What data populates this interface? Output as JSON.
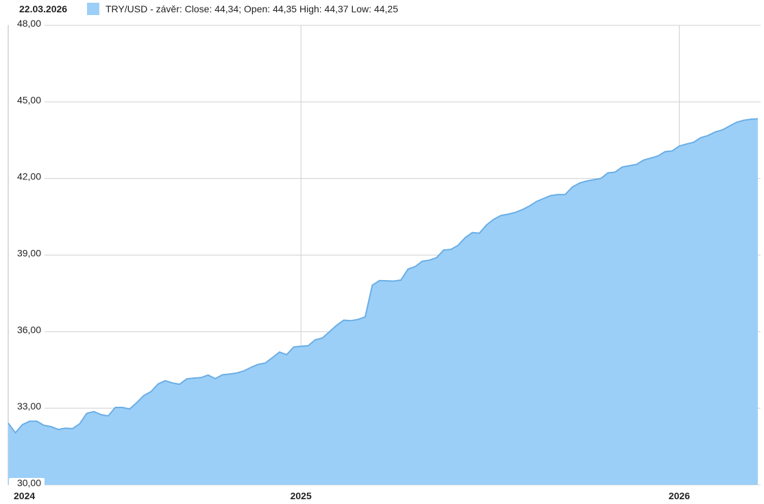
{
  "chart_data": {
    "type": "area",
    "title": "22.03.2026",
    "categories": [
      "2024",
      null,
      null,
      null,
      null,
      null,
      null,
      null,
      null,
      null,
      null,
      null,
      null,
      null,
      null,
      null,
      null,
      null,
      null,
      null,
      null,
      null,
      null,
      null,
      null,
      null,
      null,
      null,
      null,
      null,
      null,
      null,
      null,
      null,
      null,
      null,
      null,
      null,
      null,
      null,
      null,
      "2025",
      null,
      null,
      null,
      null,
      null,
      null,
      null,
      null,
      null,
      null,
      null,
      null,
      null,
      null,
      null,
      null,
      null,
      null,
      null,
      null,
      null,
      null,
      null,
      null,
      null,
      null,
      null,
      null,
      null,
      null,
      null,
      null,
      null,
      null,
      null,
      null,
      null,
      null,
      null,
      null,
      null,
      null,
      null,
      null,
      null,
      null,
      null,
      null,
      null,
      null,
      null,
      null,
      "2026",
      null,
      null,
      null,
      null,
      null,
      null,
      null,
      null,
      null,
      null,
      null
    ],
    "series": [
      {
        "name": "TRY/USD - závěr: Close: 44,34; Open: 44,35 High: 44,37 Low: 44,25",
        "color": "#9ccff7",
        "line_color": "#6aaee6",
        "values": [
          32.42,
          32.04,
          32.36,
          32.49,
          32.49,
          32.33,
          32.28,
          32.17,
          32.22,
          32.2,
          32.39,
          32.8,
          32.87,
          32.75,
          32.7,
          33.03,
          33.03,
          32.97,
          33.22,
          33.5,
          33.65,
          33.95,
          34.08,
          33.99,
          33.94,
          34.15,
          34.18,
          34.2,
          34.3,
          34.16,
          34.31,
          34.34,
          34.38,
          34.46,
          34.6,
          34.72,
          34.77,
          34.98,
          35.2,
          35.1,
          35.4,
          35.43,
          35.45,
          35.68,
          35.75,
          36.0,
          36.25,
          36.45,
          36.43,
          36.48,
          36.58,
          37.82,
          38.0,
          37.99,
          37.98,
          38.02,
          38.45,
          38.55,
          38.76,
          38.8,
          38.9,
          39.2,
          39.22,
          39.38,
          39.68,
          39.88,
          39.86,
          40.18,
          40.4,
          40.55,
          40.6,
          40.67,
          40.78,
          40.92,
          41.1,
          41.22,
          41.33,
          41.37,
          41.37,
          41.66,
          41.82,
          41.9,
          41.95,
          42.0,
          42.22,
          42.25,
          42.45,
          42.5,
          42.55,
          42.72,
          42.8,
          42.88,
          43.05,
          43.08,
          43.27,
          43.35,
          43.42,
          43.6,
          43.68,
          43.82,
          43.9,
          44.05,
          44.2,
          44.28,
          44.32,
          44.34
        ]
      }
    ],
    "ylim": [
      30,
      48
    ],
    "yticks": [
      {
        "value": 30,
        "label": "30,00"
      },
      {
        "value": 33,
        "label": "33,00"
      },
      {
        "value": 36,
        "label": "36,00"
      },
      {
        "value": 39,
        "label": "39,00"
      },
      {
        "value": 42,
        "label": "42,00"
      },
      {
        "value": 45,
        "label": "45,00"
      },
      {
        "value": 48,
        "label": "48,00"
      }
    ],
    "grid": true
  }
}
